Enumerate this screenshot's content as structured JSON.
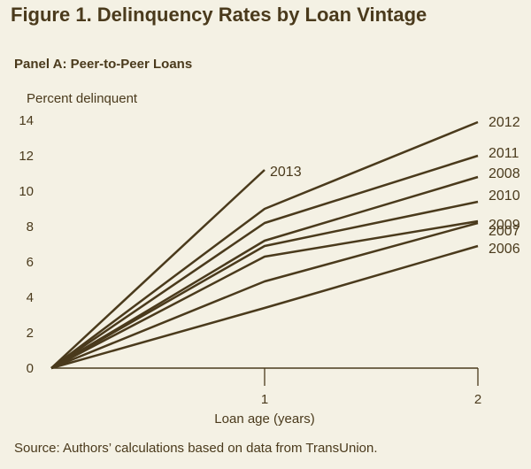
{
  "figure_title": "Figure 1. Delinquency Rates by Loan Vintage",
  "panel_title": "Panel A: Peer-to-Peer Loans",
  "source": "Source: Authors’ calculations based on data from TransUnion.",
  "colors": {
    "background": "#f4f1e4",
    "line": "#4a3a1c",
    "text": "#4a3a1c"
  },
  "chart_data": {
    "type": "line",
    "ylabel": "Percent delinquent",
    "xlabel": "Loan age (years)",
    "x": [
      0,
      1,
      2
    ],
    "xticks": [
      1,
      2
    ],
    "xlim": [
      0,
      2
    ],
    "ylim": [
      0,
      14
    ],
    "yticks": [
      0,
      2,
      4,
      6,
      8,
      10,
      12,
      14
    ],
    "grid": false,
    "legend": "none; series labeled directly at line ends",
    "series": [
      {
        "name": "2013",
        "x": [
          0,
          1
        ],
        "values": [
          0,
          11.2
        ]
      },
      {
        "name": "2012",
        "x": [
          0,
          1,
          2
        ],
        "values": [
          0,
          9.0,
          13.9
        ]
      },
      {
        "name": "2011",
        "x": [
          0,
          1,
          2
        ],
        "values": [
          0,
          8.2,
          12.0
        ]
      },
      {
        "name": "2008",
        "x": [
          0,
          1,
          2
        ],
        "values": [
          0,
          7.2,
          10.8
        ]
      },
      {
        "name": "2010",
        "x": [
          0,
          1,
          2
        ],
        "values": [
          0,
          6.9,
          9.4
        ]
      },
      {
        "name": "2009",
        "x": [
          0,
          1,
          2
        ],
        "values": [
          0,
          6.3,
          8.3
        ]
      },
      {
        "name": "2007",
        "x": [
          0,
          1,
          2
        ],
        "values": [
          0,
          4.9,
          8.2
        ]
      },
      {
        "name": "2006",
        "x": [
          0,
          1,
          2
        ],
        "values": [
          0,
          3.4,
          6.9
        ]
      }
    ]
  }
}
